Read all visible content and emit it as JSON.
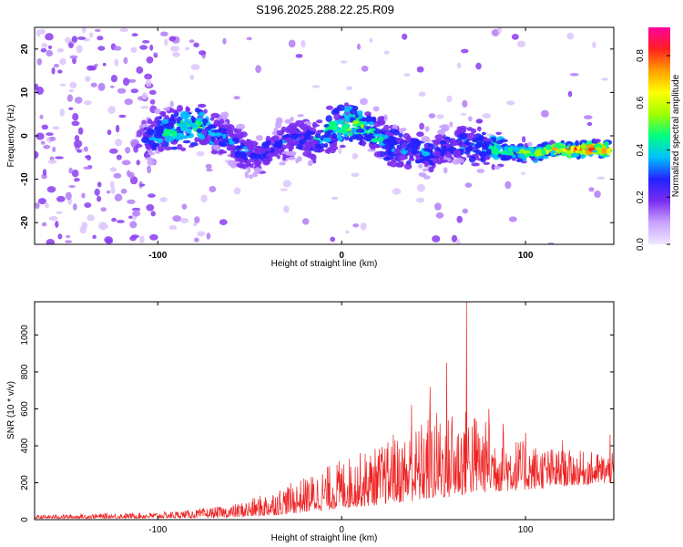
{
  "title": "S196.2025.288.22.25.R09",
  "chart_data": [
    {
      "type": "heatmap",
      "xlabel": "Height of straight line (km)",
      "ylabel": "Frequency (Hz)",
      "xlim": [
        -167,
        148
      ],
      "ylim": [
        -25,
        25
      ],
      "xticks": [
        -100,
        0,
        100
      ],
      "yticks": [
        -20,
        -10,
        0,
        10,
        20
      ],
      "colorbar": {
        "label": "Normalized spectral amplitude",
        "range": [
          0,
          0.92
        ],
        "ticks": [
          0,
          0.2,
          0.4,
          0.6,
          0.8
        ],
        "colormap": [
          "#ffffff",
          "#c9a3ff",
          "#7a2cf0",
          "#2222ff",
          "#00c0ff",
          "#00ff80",
          "#a0ff00",
          "#ffff00",
          "#ffa000",
          "#ff2020",
          "#ff00a0"
        ]
      },
      "ridge": {
        "x": [
          -107,
          -95,
          -85,
          -75,
          -65,
          -55,
          -45,
          -35,
          -25,
          -15,
          -5,
          5,
          15,
          25,
          35,
          45,
          55,
          65,
          75,
          85,
          95,
          105,
          115,
          125,
          135,
          145
        ],
        "freq": [
          -1,
          1,
          2,
          2,
          0,
          -3,
          -5,
          -2,
          0,
          -1,
          2,
          3,
          2,
          -2,
          -3,
          -4,
          -3,
          -2,
          -2,
          -3,
          -4,
          -4,
          -3,
          -3,
          -3,
          -3
        ],
        "amp": [
          0.3,
          0.45,
          0.5,
          0.45,
          0.35,
          0.35,
          0.3,
          0.3,
          0.3,
          0.35,
          0.5,
          0.55,
          0.5,
          0.4,
          0.35,
          0.35,
          0.3,
          0.35,
          0.4,
          0.45,
          0.55,
          0.65,
          0.7,
          0.8,
          0.85,
          0.8
        ]
      }
    },
    {
      "type": "line",
      "xlabel": "Height of straight line (km)",
      "ylabel": "SNR (10 * v/v)",
      "xlim": [
        -167,
        148
      ],
      "ylim": [
        0,
        1180
      ],
      "xticks": [
        -100,
        0,
        100
      ],
      "yticks": [
        0,
        200,
        400,
        600,
        800,
        1000
      ],
      "series_color": "#ee2222",
      "envelope": {
        "x": [
          -167,
          -100,
          -80,
          -60,
          -50,
          -40,
          -20,
          0,
          20,
          40,
          50,
          60,
          70,
          80,
          100,
          120,
          148
        ],
        "low": [
          5,
          8,
          10,
          12,
          15,
          20,
          40,
          60,
          80,
          100,
          110,
          120,
          140,
          150,
          160,
          180,
          200
        ],
        "high": [
          25,
          40,
          55,
          80,
          110,
          150,
          230,
          330,
          400,
          500,
          600,
          560,
          620,
          520,
          420,
          380,
          360
        ]
      },
      "spikes": [
        {
          "x": 68,
          "y": 1180
        },
        {
          "x": 57,
          "y": 850
        },
        {
          "x": 48,
          "y": 720
        },
        {
          "x": 38,
          "y": 620
        },
        {
          "x": 80,
          "y": 600
        },
        {
          "x": 60,
          "y": 560
        },
        {
          "x": 88,
          "y": 520
        },
        {
          "x": 28,
          "y": 460
        },
        {
          "x": 100,
          "y": 470
        },
        {
          "x": 120,
          "y": 430
        },
        {
          "x": 146,
          "y": 460
        }
      ]
    }
  ]
}
